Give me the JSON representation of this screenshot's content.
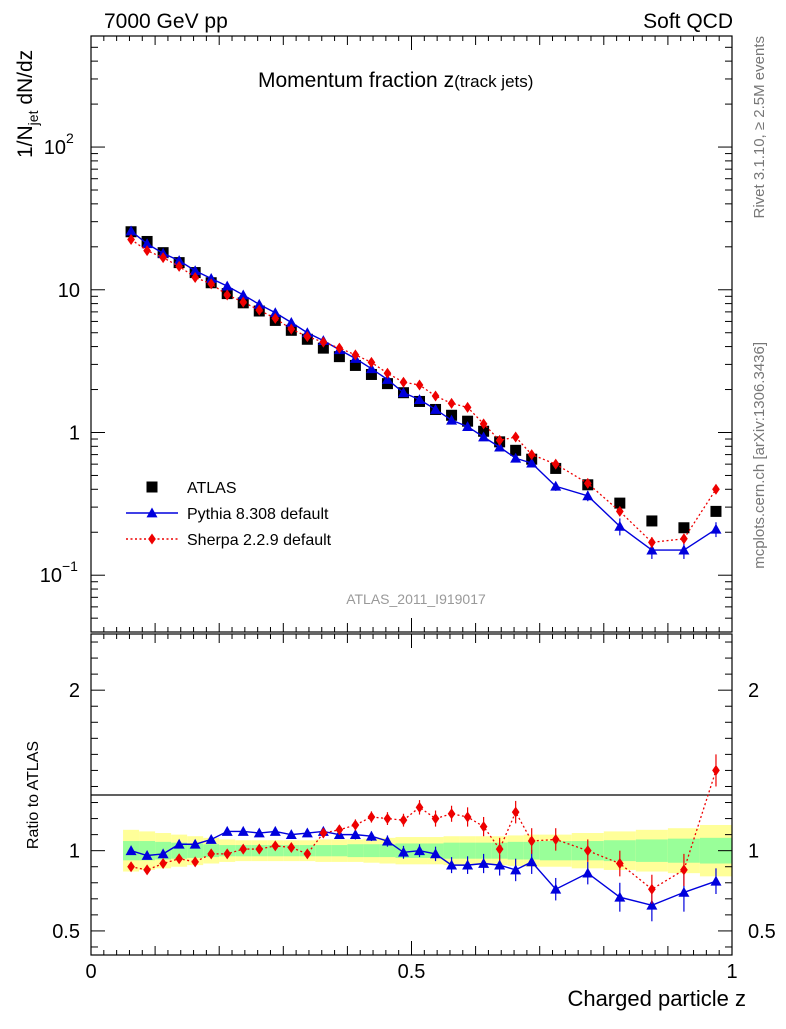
{
  "header": {
    "left_label": "7000 GeV pp",
    "right_label": "Soft QCD"
  },
  "side_labels": {
    "rivet": "Rivet 3.1.10, ≥ 2.5M events",
    "mcplots": "mcplots.cern.ch [arXiv:1306.3436]"
  },
  "watermark": "ATLAS_2011_I919017",
  "title": {
    "main": "Momentum fraction z",
    "sub": "(track jets)"
  },
  "legend": {
    "position": "lower-left",
    "entries": [
      {
        "label": "ATLAS",
        "color": "#000000",
        "marker": "square"
      },
      {
        "label": "Pythia 8.308 default",
        "color": "#0000dd",
        "marker": "triangle"
      },
      {
        "label": "Sherpa 2.2.9 default",
        "color": "#ee0000",
        "marker": "diamond"
      }
    ]
  },
  "chart_data": [
    {
      "type": "scatter",
      "panel": "main",
      "ylabel_main": "1/N",
      "ylabel_sub": "jet",
      "ylabel_rest": " dN/dz",
      "xlim": [
        0,
        1
      ],
      "ylim": [
        0.04,
        600
      ],
      "yscale": "log",
      "yticks": [
        {
          "value": 0.1,
          "label": "10",
          "exp": "−1"
        },
        {
          "value": 1,
          "label": "1",
          "exp": ""
        },
        {
          "value": 10,
          "label": "10",
          "exp": ""
        },
        {
          "value": 100,
          "label": "10",
          "exp": "2"
        }
      ],
      "x": [
        0.0625,
        0.0875,
        0.1125,
        0.1375,
        0.1625,
        0.1875,
        0.2125,
        0.2375,
        0.2625,
        0.2875,
        0.3125,
        0.3375,
        0.3625,
        0.3875,
        0.4125,
        0.4375,
        0.4625,
        0.4875,
        0.5125,
        0.5375,
        0.5625,
        0.5875,
        0.6125,
        0.6375,
        0.6625,
        0.6875,
        0.725,
        0.775,
        0.825,
        0.875,
        0.925,
        0.975
      ],
      "series": [
        {
          "name": "ATLAS",
          "color": "#000000",
          "values": [
            25.5,
            21.8,
            18.2,
            15.5,
            13.2,
            11.2,
            9.4,
            8.1,
            7.1,
            6.1,
            5.2,
            4.5,
            3.9,
            3.4,
            2.95,
            2.55,
            2.2,
            1.9,
            1.65,
            1.45,
            1.32,
            1.2,
            1.02,
            0.86,
            0.75,
            0.65,
            0.56,
            0.43,
            0.32,
            0.24,
            0.215,
            0.28
          ]
        },
        {
          "name": "Pythia 8.308 default",
          "color": "#0000dd",
          "values": [
            25.8,
            21.0,
            18.0,
            16.0,
            13.6,
            12.0,
            10.6,
            9.2,
            7.9,
            6.9,
            5.9,
            5.0,
            4.4,
            3.8,
            3.3,
            2.8,
            2.35,
            1.9,
            1.7,
            1.45,
            1.22,
            1.1,
            0.93,
            0.79,
            0.66,
            0.61,
            0.42,
            0.36,
            0.22,
            0.15,
            0.15,
            0.21
          ],
          "errors": [
            0.5,
            0.4,
            0.35,
            0.3,
            0.25,
            0.2,
            0.18,
            0.16,
            0.14,
            0.12,
            0.1,
            0.09,
            0.08,
            0.07,
            0.06,
            0.05,
            0.05,
            0.04,
            0.04,
            0.035,
            0.03,
            0.03,
            0.03,
            0.03,
            0.03,
            0.03,
            0.03,
            0.03,
            0.03,
            0.02,
            0.02,
            0.025
          ]
        },
        {
          "name": "Sherpa 2.2.9 default",
          "color": "#ee0000",
          "values": [
            22.5,
            18.8,
            16.8,
            14.6,
            12.2,
            11.0,
            9.2,
            8.2,
            7.2,
            6.3,
            5.3,
            4.7,
            4.3,
            3.9,
            3.5,
            3.1,
            2.6,
            2.25,
            2.15,
            1.8,
            1.6,
            1.5,
            1.15,
            0.88,
            0.93,
            0.7,
            0.6,
            0.44,
            0.28,
            0.17,
            0.18,
            0.4
          ],
          "errors": [
            0.5,
            0.4,
            0.35,
            0.3,
            0.25,
            0.2,
            0.18,
            0.16,
            0.14,
            0.12,
            0.1,
            0.09,
            0.08,
            0.07,
            0.06,
            0.06,
            0.05,
            0.05,
            0.05,
            0.04,
            0.04,
            0.04,
            0.04,
            0.04,
            0.04,
            0.03,
            0.03,
            0.03,
            0.02,
            0.015,
            0.015,
            0.03
          ]
        }
      ]
    },
    {
      "type": "scatter",
      "panel": "ratio",
      "ylabel": "Ratio to ATLAS",
      "xlabel": "Charged particle z",
      "xlim": [
        0,
        1
      ],
      "ylim": [
        0.35,
        2.35
      ],
      "yticks": [
        {
          "value": 0.5,
          "label": "0.5"
        },
        {
          "value": 1,
          "label": "1"
        },
        {
          "value": 2,
          "label": "2"
        }
      ],
      "xticks": [
        {
          "value": 0,
          "label": "0"
        },
        {
          "value": 0.5,
          "label": "0.5"
        },
        {
          "value": 1,
          "label": "1"
        }
      ],
      "band_colors": {
        "inner": "#99ff99",
        "outer": "#ffff99"
      },
      "bins": [
        0.05,
        0.075,
        0.1,
        0.125,
        0.15,
        0.175,
        0.2,
        0.225,
        0.25,
        0.275,
        0.3,
        0.325,
        0.35,
        0.375,
        0.4,
        0.425,
        0.45,
        0.475,
        0.5,
        0.525,
        0.55,
        0.575,
        0.6,
        0.625,
        0.65,
        0.675,
        0.7,
        0.75,
        0.8,
        0.85,
        0.9,
        0.95,
        1.0
      ],
      "band_inner": [
        0.06,
        0.06,
        0.055,
        0.05,
        0.045,
        0.04,
        0.035,
        0.035,
        0.035,
        0.035,
        0.035,
        0.035,
        0.035,
        0.035,
        0.04,
        0.04,
        0.04,
        0.045,
        0.045,
        0.045,
        0.05,
        0.05,
        0.05,
        0.05,
        0.055,
        0.055,
        0.06,
        0.06,
        0.065,
        0.07,
        0.075,
        0.08
      ],
      "band_outer": [
        0.13,
        0.12,
        0.11,
        0.1,
        0.09,
        0.08,
        0.07,
        0.065,
        0.065,
        0.065,
        0.065,
        0.065,
        0.07,
        0.07,
        0.07,
        0.075,
        0.08,
        0.085,
        0.085,
        0.085,
        0.09,
        0.09,
        0.09,
        0.09,
        0.095,
        0.1,
        0.1,
        0.11,
        0.12,
        0.13,
        0.14,
        0.16
      ],
      "series": [
        {
          "name": "Pythia 8.308 default",
          "color": "#0000dd",
          "values": [
            1.0,
            0.97,
            0.98,
            1.04,
            1.04,
            1.07,
            1.12,
            1.12,
            1.11,
            1.12,
            1.1,
            1.11,
            1.12,
            1.1,
            1.1,
            1.09,
            1.06,
            0.99,
            1.0,
            0.98,
            0.91,
            0.91,
            0.92,
            0.91,
            0.88,
            0.93,
            0.76,
            0.86,
            0.71,
            0.66,
            0.74,
            0.81
          ],
          "errors": [
            0.02,
            0.02,
            0.02,
            0.02,
            0.02,
            0.02,
            0.02,
            0.02,
            0.02,
            0.02,
            0.025,
            0.025,
            0.025,
            0.025,
            0.03,
            0.03,
            0.035,
            0.04,
            0.04,
            0.045,
            0.05,
            0.055,
            0.06,
            0.065,
            0.07,
            0.075,
            0.07,
            0.07,
            0.09,
            0.1,
            0.12,
            0.08
          ]
        },
        {
          "name": "Sherpa 2.2.9 default",
          "color": "#ee0000",
          "values": [
            0.9,
            0.88,
            0.92,
            0.95,
            0.93,
            0.98,
            0.98,
            1.01,
            1.01,
            1.03,
            1.02,
            0.98,
            1.11,
            1.13,
            1.16,
            1.21,
            1.2,
            1.19,
            1.27,
            1.2,
            1.23,
            1.21,
            1.15,
            1.01,
            1.24,
            1.06,
            1.07,
            1.0,
            0.92,
            0.76,
            0.88,
            1.5
          ],
          "errors": [
            0.02,
            0.02,
            0.02,
            0.02,
            0.02,
            0.02,
            0.02,
            0.02,
            0.02,
            0.02,
            0.025,
            0.025,
            0.03,
            0.03,
            0.035,
            0.035,
            0.04,
            0.04,
            0.045,
            0.05,
            0.05,
            0.06,
            0.06,
            0.07,
            0.07,
            0.08,
            0.07,
            0.07,
            0.08,
            0.09,
            0.1,
            0.1
          ]
        }
      ]
    }
  ]
}
